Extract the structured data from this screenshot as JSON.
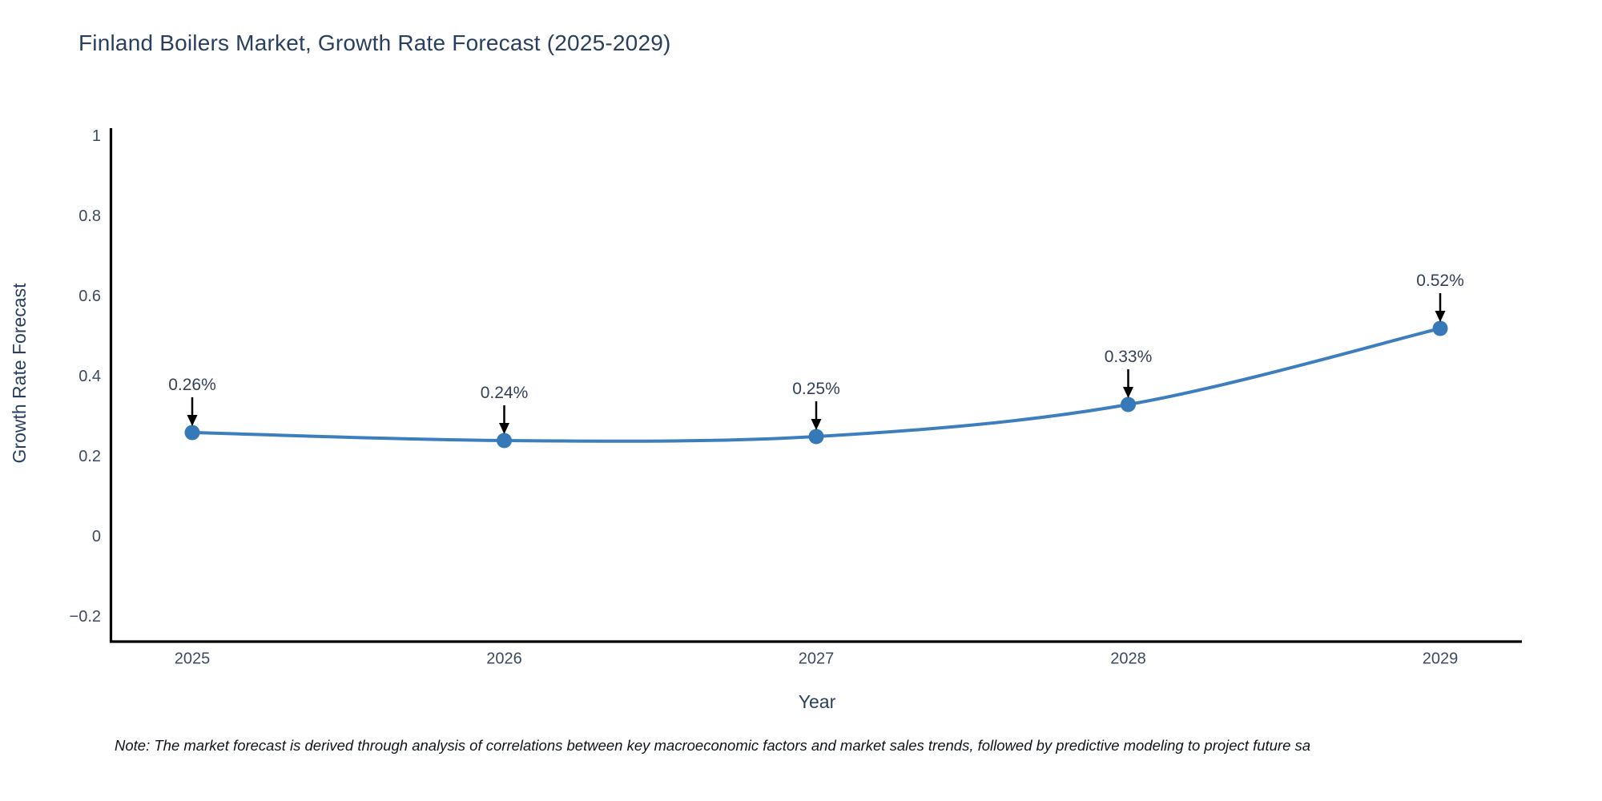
{
  "title": "Finland Boilers Market, Growth Rate Forecast (2025-2029)",
  "note": "Note: The market forecast is derived through analysis of correlations between key macroeconomic factors and market sales trends, followed by predictive modeling to project future sa",
  "chart_data": {
    "type": "line",
    "title": "Finland Boilers Market, Growth Rate Forecast (2025-2029)",
    "xlabel": "Year",
    "ylabel": "Growth Rate Forecast",
    "x": [
      2025,
      2026,
      2027,
      2028,
      2029
    ],
    "xtick_labels": [
      "2025",
      "2026",
      "2027",
      "2028",
      "2029"
    ],
    "series": [
      {
        "name": "Growth Rate Forecast",
        "values": [
          0.26,
          0.24,
          0.25,
          0.33,
          0.52
        ]
      }
    ],
    "point_labels": [
      "0.26%",
      "0.24%",
      "0.25%",
      "0.33%",
      "0.52%"
    ],
    "yticks": [
      1,
      0.8,
      0.6,
      0.4,
      0.2,
      0,
      -0.2
    ],
    "ytick_labels": [
      "1",
      "0.8",
      "0.6",
      "0.4",
      "0.2",
      "0",
      "−0.2"
    ],
    "ylim": [
      -0.26,
      1.02
    ],
    "grid": false,
    "legend": false,
    "line_shape": "spline",
    "line_color": "#3d7ebf",
    "marker_color": "#3579b8",
    "arrow_color": "#000000",
    "axis_color": "#000000"
  }
}
